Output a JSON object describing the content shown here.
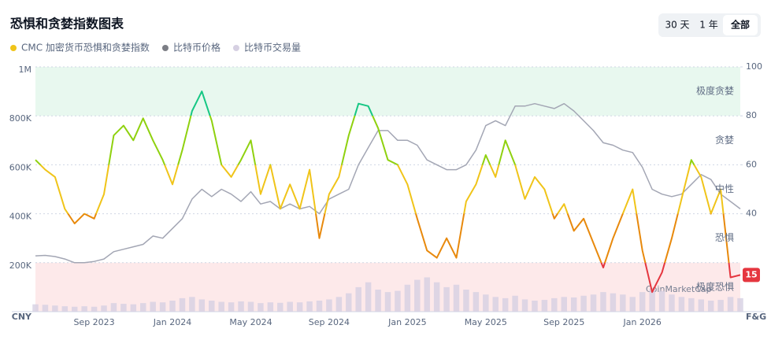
{
  "chart_data": {
    "type": "line",
    "title": "恐惧和贪婪指数图表",
    "controls": [
      "30 天",
      "1 年",
      "全部"
    ],
    "selected_control": 2,
    "watermark": "CoinMarketCap",
    "y_axis_label": "CNY",
    "y2_axis_label": "F&G",
    "categories": [
      null,
      null,
      null,
      null,
      null,
      null,
      "Sep 2023",
      null,
      null,
      null,
      null,
      null,
      null,
      null,
      "Jan 2024",
      null,
      null,
      null,
      null,
      null,
      null,
      null,
      "May 2024",
      null,
      null,
      null,
      null,
      null,
      null,
      null,
      "Sep 2024",
      null,
      null,
      null,
      null,
      null,
      null,
      null,
      "Jan 2025",
      null,
      null,
      null,
      null,
      null,
      null,
      null,
      "May 2025",
      null,
      null,
      null,
      null,
      null,
      null,
      null,
      "Sep 2025",
      null,
      null,
      null,
      null,
      null,
      null,
      null,
      "Jan 2026",
      null,
      null,
      null,
      null,
      null,
      null,
      null,
      null,
      null,
      null
    ],
    "ylim": [
      0,
      1000000
    ],
    "yticks": [
      {
        "value": 200000,
        "label": "200K"
      },
      {
        "value": 400000,
        "label": "400K"
      },
      {
        "value": 600000,
        "label": "600K"
      },
      {
        "value": 800000,
        "label": "800K"
      },
      {
        "value": 1000000,
        "label": "1M"
      }
    ],
    "y2lim": [
      0,
      100
    ],
    "y2ticks": [
      40,
      60,
      80,
      100
    ],
    "grid": true,
    "zones": [
      {
        "label": "极度恐惧",
        "range": [
          0,
          20
        ],
        "color": "#e5363f",
        "band_color": "#fde9ea"
      },
      {
        "label": "恐惧",
        "range": [
          20,
          40
        ],
        "color": "#e8890c"
      },
      {
        "label": "中性",
        "range": [
          40,
          60
        ],
        "color": "#f0c419"
      },
      {
        "label": "贪婪",
        "range": [
          60,
          80
        ],
        "color": "#8fd10f"
      },
      {
        "label": "极度贪婪",
        "range": [
          80,
          100
        ],
        "color": "#16c784",
        "band_color": "#e8f8ef"
      }
    ],
    "series": [
      {
        "name": "CMC 加密货币恐惧和贪婪指数",
        "color": "#f0c419",
        "axis": "y2",
        "values": [
          62,
          58,
          55,
          42,
          36,
          40,
          38,
          48,
          72,
          76,
          70,
          79,
          70,
          62,
          52,
          66,
          82,
          90,
          78,
          60,
          55,
          62,
          70,
          48,
          60,
          42,
          52,
          42,
          58,
          30,
          48,
          55,
          72,
          85,
          84,
          75,
          62,
          60,
          52,
          38,
          25,
          22,
          30,
          22,
          45,
          52,
          64,
          55,
          70,
          60,
          46,
          55,
          50,
          38,
          44,
          33,
          38,
          28,
          18,
          30,
          40,
          50,
          25,
          8,
          16,
          30,
          46,
          62,
          55,
          40,
          50,
          14,
          15
        ]
      },
      {
        "name": "比特币价格",
        "color": "#a3a6b4",
        "values": [
          228000,
          230000,
          225000,
          215000,
          200000,
          200000,
          205000,
          215000,
          245000,
          255000,
          265000,
          275000,
          309000,
          300000,
          340000,
          380000,
          460000,
          500000,
          470000,
          500000,
          480000,
          450000,
          490000,
          440000,
          450000,
          420000,
          440000,
          420000,
          430000,
          400000,
          460000,
          480000,
          500000,
          600000,
          670000,
          740000,
          740000,
          700000,
          700000,
          680000,
          620000,
          600000,
          580000,
          580000,
          600000,
          660000,
          760000,
          780000,
          760000,
          840000,
          840000,
          850000,
          840000,
          830000,
          850000,
          820000,
          780000,
          740000,
          690000,
          680000,
          660000,
          650000,
          590000,
          500000,
          480000,
          470000,
          480000,
          520000,
          560000,
          540000,
          480000,
          450000,
          420000
        ]
      },
      {
        "name": "比特币交易量",
        "color": "#d6d0e2",
        "type": "bar",
        "values": [
          30000,
          28000,
          25000,
          22000,
          20000,
          22000,
          20000,
          25000,
          35000,
          32000,
          30000,
          35000,
          40000,
          38000,
          45000,
          55000,
          60000,
          50000,
          45000,
          40000,
          38000,
          42000,
          40000,
          35000,
          38000,
          36000,
          40000,
          38000,
          42000,
          45000,
          50000,
          60000,
          75000,
          100000,
          120000,
          90000,
          80000,
          85000,
          110000,
          130000,
          140000,
          120000,
          100000,
          110000,
          90000,
          80000,
          70000,
          60000,
          55000,
          65000,
          50000,
          45000,
          48000,
          55000,
          60000,
          58000,
          65000,
          70000,
          80000,
          75000,
          70000,
          60000,
          80000,
          95000,
          85000,
          70000,
          60000,
          55000,
          50000,
          45000,
          48000,
          60000,
          55000
        ]
      }
    ]
  }
}
